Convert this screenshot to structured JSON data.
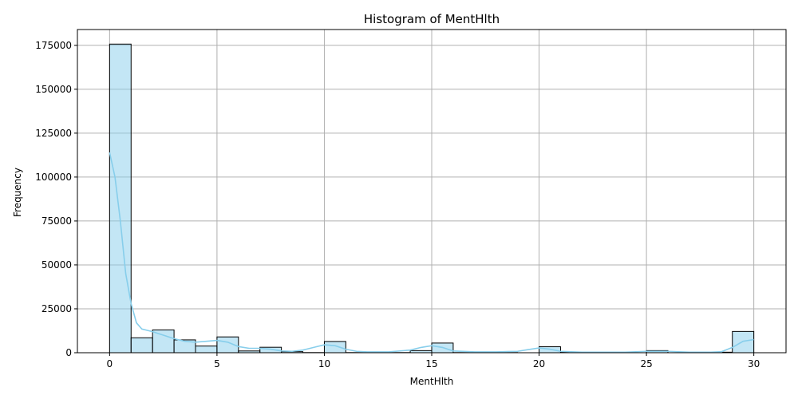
{
  "chart_data": {
    "type": "bar",
    "title": "Histogram of MentHlth",
    "xlabel": "MentHlth",
    "ylabel": "Frequency",
    "xlim": [
      -1.5,
      31.5
    ],
    "ylim": [
      0,
      184000
    ],
    "xticks": [
      0,
      5,
      10,
      15,
      20,
      25,
      30
    ],
    "yticks": [
      0,
      25000,
      50000,
      75000,
      100000,
      125000,
      150000,
      175000
    ],
    "grid": true,
    "bar_color": "#87ceeb",
    "bar_edge_color": "#000000",
    "kde_color": "#87ceeb",
    "bin_width": 1,
    "bins": [
      {
        "x": 0,
        "count": 175700
      },
      {
        "x": 1,
        "count": 8500
      },
      {
        "x": 2,
        "count": 13000
      },
      {
        "x": 3,
        "count": 7300
      },
      {
        "x": 4,
        "count": 3800
      },
      {
        "x": 5,
        "count": 9000
      },
      {
        "x": 6,
        "count": 1000
      },
      {
        "x": 7,
        "count": 3100
      },
      {
        "x": 8,
        "count": 600
      },
      {
        "x": 9,
        "count": 100
      },
      {
        "x": 10,
        "count": 6400
      },
      {
        "x": 11,
        "count": 100
      },
      {
        "x": 12,
        "count": 400
      },
      {
        "x": 13,
        "count": 100
      },
      {
        "x": 14,
        "count": 1200
      },
      {
        "x": 15,
        "count": 5500
      },
      {
        "x": 16,
        "count": 100
      },
      {
        "x": 17,
        "count": 100
      },
      {
        "x": 18,
        "count": 100
      },
      {
        "x": 19,
        "count": 0
      },
      {
        "x": 20,
        "count": 3400
      },
      {
        "x": 21,
        "count": 200
      },
      {
        "x": 22,
        "count": 100
      },
      {
        "x": 23,
        "count": 0
      },
      {
        "x": 24,
        "count": 0
      },
      {
        "x": 25,
        "count": 1200
      },
      {
        "x": 26,
        "count": 0
      },
      {
        "x": 27,
        "count": 100
      },
      {
        "x": 28,
        "count": 300
      },
      {
        "x": 29,
        "count": 12100
      }
    ],
    "kde": {
      "x": [
        0,
        0.25,
        0.5,
        0.75,
        1,
        1.25,
        1.5,
        2,
        2.5,
        3,
        3.5,
        4,
        4.5,
        5,
        5.5,
        6,
        6.5,
        7,
        7.5,
        8,
        8.5,
        9,
        9.5,
        10,
        10.5,
        11,
        11.5,
        12,
        13,
        14,
        14.5,
        15,
        15.5,
        16,
        17,
        18,
        19,
        19.5,
        20,
        20.5,
        21,
        22,
        23,
        24,
        25,
        26,
        27,
        28,
        28.5,
        29,
        29.5,
        30
      ],
      "y": [
        114000,
        100000,
        75000,
        45000,
        28000,
        17000,
        13500,
        12000,
        10000,
        8000,
        6500,
        6000,
        6500,
        7000,
        6000,
        3500,
        2500,
        2500,
        2000,
        1000,
        800,
        1500,
        3000,
        4500,
        4000,
        2000,
        800,
        500,
        500,
        1500,
        3000,
        4000,
        3000,
        1000,
        500,
        500,
        800,
        1800,
        2700,
        2000,
        800,
        300,
        300,
        300,
        800,
        800,
        300,
        300,
        600,
        3000,
        6500,
        7500
      ]
    }
  }
}
